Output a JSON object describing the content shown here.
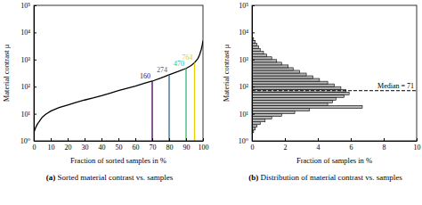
{
  "chart_data": [
    {
      "type": "line",
      "label": "(a)",
      "title": "Sorted material contrast vs. samples",
      "x_label": "Fraction of sorted samples in %",
      "y_label": "Material contrast μ",
      "x": [
        0,
        1,
        2,
        3,
        5,
        7,
        10,
        15,
        20,
        25,
        30,
        35,
        40,
        45,
        50,
        55,
        60,
        65,
        70,
        75,
        80,
        85,
        90,
        93,
        95,
        97,
        98,
        99,
        99.5,
        100
      ],
      "values": [
        2,
        3,
        4,
        5,
        7.5,
        9.5,
        12.5,
        17,
        21,
        26,
        32,
        38,
        46,
        57,
        71,
        87,
        105,
        130,
        160,
        205,
        274,
        355,
        470,
        600,
        764,
        1100,
        1500,
        2400,
        3300,
        5000
      ],
      "color": "#000000",
      "log": "y",
      "xlim": [
        0,
        100
      ],
      "ylim": [
        1,
        100000
      ],
      "xticks": [
        0,
        10,
        20,
        30,
        40,
        50,
        60,
        70,
        80,
        90,
        100
      ],
      "yticks": [
        {
          "value": 1,
          "label": "10⁰"
        },
        {
          "value": 10,
          "label": "10¹"
        },
        {
          "value": 100,
          "label": "10²"
        },
        {
          "value": 1000,
          "label": "10³"
        },
        {
          "value": 10000,
          "label": "10⁴"
        },
        {
          "value": 100000,
          "label": "10⁵"
        }
      ],
      "annotations": [
        {
          "x": 70,
          "value": 160,
          "color": "#440154"
        },
        {
          "x": 80,
          "value": 274,
          "color": "#31688e"
        },
        {
          "x": 90,
          "value": 470,
          "color": "#35b779"
        },
        {
          "x": 95,
          "value": 764,
          "color": "#e8d000"
        }
      ]
    },
    {
      "type": "histogram",
      "label": "(b)",
      "title": "Distribution of material contrast vs. samples",
      "x_label": "Fraction of samples in %",
      "y_label": "Material contrast μ",
      "orientation": "horizontal",
      "log": "y",
      "bins": [
        2.0,
        2.51,
        3.16,
        3.98,
        5.01,
        6.31,
        7.94,
        10,
        12.6,
        15.8,
        20.0,
        25.1,
        31.6,
        39.8,
        50.1,
        63.1,
        79.4,
        100,
        126,
        158,
        200,
        251,
        316,
        398,
        501,
        631,
        794,
        1000,
        1259,
        1585,
        1995,
        2512,
        3162,
        3981,
        5012,
        6310
      ],
      "values": [
        0.1,
        0.2,
        0.3,
        0.5,
        0.8,
        1.2,
        1.8,
        2.6,
        3.5,
        6.7,
        4.6,
        4.9,
        5.1,
        5.6,
        5.9,
        5.7,
        5.4,
        5.0,
        4.6,
        4.1,
        3.7,
        3.3,
        2.9,
        2.5,
        2.2,
        1.8,
        1.5,
        1.2,
        0.9,
        0.7,
        0.5,
        0.4,
        0.3,
        0.2,
        0.1
      ],
      "color": "#b3b3b3",
      "xlim": [
        0,
        10
      ],
      "ylim": [
        1,
        100000
      ],
      "xticks": [
        0,
        2,
        4,
        6,
        8,
        10
      ],
      "yticks": [
        {
          "value": 1,
          "label": "10⁰"
        },
        {
          "value": 10,
          "label": "10¹"
        },
        {
          "value": 100,
          "label": "10²"
        },
        {
          "value": 1000,
          "label": "10³"
        },
        {
          "value": 10000,
          "label": "10⁴"
        },
        {
          "value": 100000,
          "label": "10⁵"
        }
      ],
      "median": {
        "value": 71,
        "label": "Median = 71"
      }
    }
  ]
}
